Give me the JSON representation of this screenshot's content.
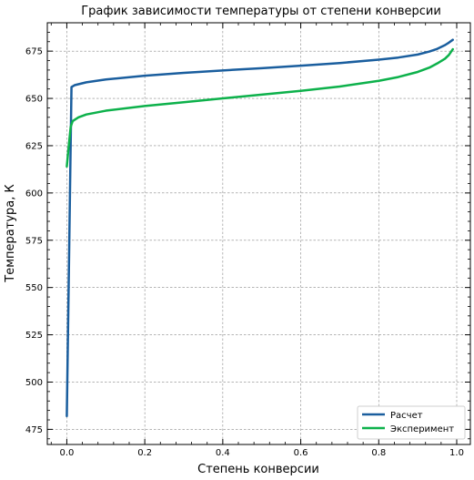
{
  "chart_data": {
    "type": "line",
    "title": "График зависимости температуры от степени конверсии",
    "xlabel": "Степень конверсии",
    "ylabel": "Температура, К",
    "xlim": [
      -0.05,
      1.035
    ],
    "ylim": [
      467,
      690
    ],
    "xticks": [
      0.0,
      0.2,
      0.4,
      0.6,
      0.8,
      1.0
    ],
    "xtick_labels": [
      "0.0",
      "0.2",
      "0.4",
      "0.6",
      "0.8",
      "1.0"
    ],
    "yticks": [
      475,
      500,
      525,
      550,
      575,
      600,
      625,
      650,
      675
    ],
    "ytick_labels": [
      "475",
      "500",
      "525",
      "550",
      "575",
      "600",
      "625",
      "650",
      "675"
    ],
    "grid": true,
    "legend_position": "bottom-right",
    "series": [
      {
        "name": "Расчет",
        "color": "#1a5e9e",
        "x": [
          0.0,
          0.012,
          0.02,
          0.05,
          0.1,
          0.2,
          0.3,
          0.4,
          0.5,
          0.6,
          0.7,
          0.8,
          0.85,
          0.9,
          0.93,
          0.95,
          0.97,
          0.98,
          0.99
        ],
        "y": [
          482,
          656,
          657,
          658.5,
          660,
          662,
          663.5,
          664.8,
          666,
          667.3,
          668.7,
          670.5,
          671.6,
          673.2,
          674.8,
          676.2,
          678.2,
          679.5,
          681
        ]
      },
      {
        "name": "Эксперимент",
        "color": "#0db14b",
        "x": [
          0.0,
          0.005,
          0.01,
          0.015,
          0.03,
          0.05,
          0.1,
          0.2,
          0.3,
          0.4,
          0.5,
          0.6,
          0.7,
          0.8,
          0.85,
          0.9,
          0.93,
          0.95,
          0.97,
          0.98,
          0.99
        ],
        "y": [
          614,
          625,
          635,
          638,
          640,
          641.5,
          643.5,
          646,
          648,
          650,
          652,
          654,
          656.3,
          659.3,
          661.3,
          664,
          666.3,
          668.5,
          671,
          673,
          676
        ]
      }
    ]
  }
}
